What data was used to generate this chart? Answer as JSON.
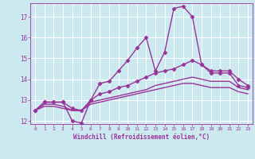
{
  "xlabel": "Windchill (Refroidissement éolien,°C)",
  "background_color": "#cce9f0",
  "grid_color": "#ffffff",
  "line_color": "#993399",
  "xlim": [
    -0.5,
    23.5
  ],
  "ylim": [
    11.85,
    17.65
  ],
  "yticks": [
    12,
    13,
    14,
    15,
    16,
    17
  ],
  "xticks": [
    0,
    1,
    2,
    3,
    4,
    5,
    6,
    7,
    8,
    9,
    10,
    11,
    12,
    13,
    14,
    15,
    16,
    17,
    18,
    19,
    20,
    21,
    22,
    23
  ],
  "lines": [
    {
      "x": [
        0,
        1,
        2,
        3,
        4,
        5,
        6,
        7,
        8,
        9,
        10,
        11,
        12,
        13,
        14,
        15,
        16,
        17,
        18,
        19,
        20,
        21,
        22,
        23
      ],
      "y": [
        12.5,
        12.9,
        12.9,
        12.9,
        12.0,
        11.9,
        13.0,
        13.8,
        13.9,
        14.4,
        14.9,
        15.5,
        16.0,
        14.4,
        15.3,
        17.4,
        17.5,
        17.0,
        14.7,
        14.3,
        14.3,
        14.3,
        13.7,
        13.6
      ],
      "marker": "D",
      "markersize": 2.5,
      "linewidth": 1.0
    },
    {
      "x": [
        0,
        1,
        2,
        3,
        4,
        5,
        6,
        7,
        8,
        9,
        10,
        11,
        12,
        13,
        14,
        15,
        16,
        17,
        18,
        19,
        20,
        21,
        22,
        23
      ],
      "y": [
        12.5,
        12.9,
        12.9,
        12.9,
        12.6,
        12.5,
        13.0,
        13.3,
        13.4,
        13.6,
        13.7,
        13.9,
        14.1,
        14.3,
        14.4,
        14.5,
        14.7,
        14.9,
        14.7,
        14.4,
        14.4,
        14.4,
        14.0,
        13.7
      ],
      "marker": "D",
      "markersize": 2.5,
      "linewidth": 1.0
    },
    {
      "x": [
        0,
        1,
        2,
        3,
        4,
        5,
        6,
        7,
        8,
        9,
        10,
        11,
        12,
        13,
        14,
        15,
        16,
        17,
        18,
        19,
        20,
        21,
        22,
        23
      ],
      "y": [
        12.5,
        12.8,
        12.8,
        12.7,
        12.5,
        12.5,
        12.9,
        13.0,
        13.1,
        13.2,
        13.3,
        13.4,
        13.5,
        13.7,
        13.8,
        13.9,
        14.0,
        14.1,
        14.0,
        13.9,
        13.9,
        13.9,
        13.6,
        13.5
      ],
      "marker": null,
      "markersize": 0,
      "linewidth": 1.0
    },
    {
      "x": [
        0,
        1,
        2,
        3,
        4,
        5,
        6,
        7,
        8,
        9,
        10,
        11,
        12,
        13,
        14,
        15,
        16,
        17,
        18,
        19,
        20,
        21,
        22,
        23
      ],
      "y": [
        12.5,
        12.7,
        12.7,
        12.6,
        12.5,
        12.5,
        12.8,
        12.9,
        13.0,
        13.1,
        13.2,
        13.3,
        13.4,
        13.5,
        13.6,
        13.7,
        13.8,
        13.8,
        13.7,
        13.6,
        13.6,
        13.6,
        13.4,
        13.3
      ],
      "marker": null,
      "markersize": 0,
      "linewidth": 1.0
    }
  ]
}
